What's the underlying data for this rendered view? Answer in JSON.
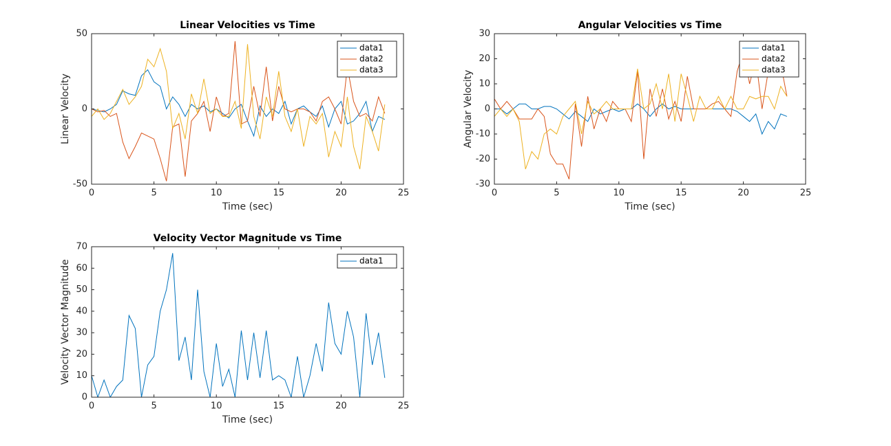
{
  "chart_data": [
    {
      "type": "line",
      "title": "Linear Velocities vs Time",
      "x_label": "Time (sec)",
      "y_label": "Linear Velocity",
      "x": [
        0,
        0.5,
        1,
        1.5,
        2,
        2.5,
        3,
        3.5,
        4,
        4.5,
        5,
        5.5,
        6,
        6.5,
        7,
        7.5,
        8,
        8.5,
        9,
        9.5,
        10,
        10.5,
        11,
        11.5,
        12,
        12.5,
        13,
        13.5,
        14,
        14.5,
        15,
        15.5,
        16,
        16.5,
        17,
        17.5,
        18,
        18.5,
        19,
        19.5,
        20,
        20.5,
        21,
        21.5,
        22,
        22.5,
        23,
        23.5
      ],
      "series": [
        {
          "name": "data1",
          "color": "#0072bd",
          "values": [
            0,
            -1,
            -2,
            0,
            3,
            12,
            10,
            9,
            22,
            26,
            18,
            15,
            0,
            8,
            3,
            -5,
            3,
            0,
            2,
            -2,
            0,
            -3,
            -6,
            0,
            3,
            -8,
            -18,
            2,
            -5,
            0,
            -3,
            5,
            -10,
            0,
            2,
            -2,
            -5,
            2,
            -12,
            0,
            5,
            -10,
            -8,
            -3,
            5,
            -15,
            -5,
            -7
          ]
        },
        {
          "name": "data2",
          "color": "#d95319",
          "values": [
            0,
            -2,
            -1,
            -5,
            -3,
            -22,
            -33,
            -25,
            -16,
            -18,
            -20,
            -33,
            -48,
            -12,
            -10,
            -45,
            -8,
            -3,
            5,
            -15,
            8,
            -5,
            -3,
            45,
            -10,
            -8,
            15,
            -5,
            28,
            -8,
            15,
            0,
            -2,
            0,
            0,
            -2,
            -8,
            5,
            8,
            0,
            -10,
            28,
            5,
            -5,
            -3,
            -8,
            8,
            -3
          ]
        },
        {
          "name": "data3",
          "color": "#edb120",
          "values": [
            -5,
            0,
            -7,
            -3,
            5,
            13,
            3,
            8,
            15,
            33,
            28,
            40,
            25,
            -13,
            -3,
            -20,
            10,
            -3,
            20,
            -3,
            0,
            -5,
            -5,
            5,
            -13,
            43,
            -5,
            -20,
            8,
            -5,
            25,
            -5,
            -15,
            0,
            -25,
            -5,
            -10,
            -3,
            -32,
            -15,
            -25,
            8,
            -25,
            -40,
            -5,
            -15,
            -28,
            3
          ]
        }
      ],
      "xlim": [
        0,
        25
      ],
      "xticks": [
        0,
        5,
        10,
        15,
        20,
        25
      ],
      "ylim": [
        -50,
        50
      ],
      "yticks": [
        -50,
        0,
        50
      ],
      "legend": "northeast"
    },
    {
      "type": "line",
      "title": "Angular Velocities vs Time",
      "x_label": "Time (sec)",
      "y_label": "Angular Velocity",
      "x": [
        0,
        0.5,
        1,
        1.5,
        2,
        2.5,
        3,
        3.5,
        4,
        4.5,
        5,
        5.5,
        6,
        6.5,
        7,
        7.5,
        8,
        8.5,
        9,
        9.5,
        10,
        10.5,
        11,
        11.5,
        12,
        12.5,
        13,
        13.5,
        14,
        14.5,
        15,
        15.5,
        16,
        16.5,
        17,
        17.5,
        18,
        18.5,
        19,
        19.5,
        20,
        20.5,
        21,
        21.5,
        22,
        22.5,
        23,
        23.5
      ],
      "series": [
        {
          "name": "data1",
          "color": "#0072bd",
          "values": [
            0,
            0,
            -2,
            0,
            2,
            2,
            0,
            0,
            1,
            1,
            0,
            -2,
            -4,
            -1,
            -3,
            -5,
            0,
            -2,
            -1,
            0,
            -1,
            0,
            0,
            2,
            0,
            -3,
            0,
            2,
            0,
            1,
            0,
            0,
            0,
            0,
            0,
            0,
            0,
            0,
            0,
            -1,
            -3,
            -5,
            -2,
            -10,
            -5,
            -8,
            -2,
            -3
          ]
        },
        {
          "name": "data2",
          "color": "#d95319",
          "values": [
            4,
            0,
            3,
            0,
            -4,
            -4,
            -4,
            0,
            -3,
            -18,
            -22,
            -22,
            -28,
            2,
            -15,
            5,
            -8,
            0,
            -5,
            3,
            0,
            0,
            -5,
            15,
            -20,
            8,
            -3,
            8,
            -4,
            3,
            -5,
            13,
            0,
            0,
            0,
            2,
            3,
            0,
            -3,
            15,
            23,
            10,
            20,
            0,
            15,
            15,
            18,
            5
          ]
        },
        {
          "name": "data3",
          "color": "#edb120",
          "values": [
            -3,
            0,
            -3,
            0,
            -5,
            -24,
            -17,
            -20,
            -10,
            -8,
            -10,
            -3,
            0,
            3,
            -10,
            3,
            -2,
            0,
            3,
            0,
            0,
            0,
            0,
            16,
            0,
            2,
            10,
            0,
            14,
            -5,
            14,
            5,
            -5,
            5,
            0,
            0,
            5,
            0,
            5,
            0,
            0,
            5,
            4,
            5,
            5,
            0,
            9,
            5
          ]
        }
      ],
      "xlim": [
        0,
        25
      ],
      "xticks": [
        0,
        5,
        10,
        15,
        20,
        25
      ],
      "ylim": [
        -30,
        30
      ],
      "yticks": [
        -30,
        -20,
        -10,
        0,
        10,
        20,
        30
      ],
      "legend": "northeast"
    },
    {
      "type": "line",
      "title": "Velocity Vector Magnitude vs Time",
      "x_label": "Time (sec)",
      "y_label": "Velocity Vector Magnitude",
      "x": [
        0,
        0.5,
        1,
        1.5,
        2,
        2.5,
        3,
        3.5,
        4,
        4.5,
        5,
        5.5,
        6,
        6.5,
        7,
        7.5,
        8,
        8.5,
        9,
        9.5,
        10,
        10.5,
        11,
        11.5,
        12,
        12.5,
        13,
        13.5,
        14,
        14.5,
        15,
        15.5,
        16,
        16.5,
        17,
        17.5,
        18,
        18.5,
        19,
        19.5,
        20,
        20.5,
        21,
        21.5,
        22,
        22.5,
        23,
        23.5
      ],
      "series": [
        {
          "name": "data1",
          "color": "#0072bd",
          "values": [
            10,
            0,
            8,
            0,
            5,
            8,
            38,
            32,
            0,
            15,
            19,
            40,
            50,
            67,
            17,
            28,
            8,
            50,
            12,
            0,
            25,
            5,
            13,
            0,
            31,
            8,
            30,
            9,
            31,
            8,
            10,
            8,
            0,
            19,
            0,
            10,
            25,
            12,
            44,
            25,
            20,
            40,
            28,
            0,
            39,
            15,
            30,
            9
          ]
        }
      ],
      "xlim": [
        0,
        25
      ],
      "xticks": [
        0,
        5,
        10,
        15,
        20,
        25
      ],
      "ylim": [
        0,
        70
      ],
      "yticks": [
        0,
        10,
        20,
        30,
        40,
        50,
        60,
        70
      ],
      "legend": "northeast"
    }
  ]
}
